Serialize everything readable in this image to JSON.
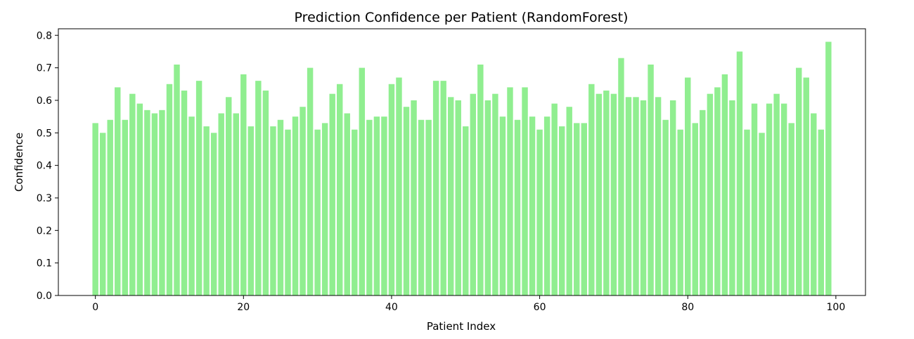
{
  "chart_data": {
    "type": "bar",
    "title": "Prediction Confidence per Patient (RandomForest)",
    "xlabel": "Patient Index",
    "ylabel": "Confidence",
    "bar_color": "#90ee90",
    "xlim": [
      -5,
      104
    ],
    "ylim": [
      0,
      0.82
    ],
    "xticks": [
      0,
      20,
      40,
      60,
      80,
      100
    ],
    "yticks": [
      0.0,
      0.1,
      0.2,
      0.3,
      0.4,
      0.5,
      0.6,
      0.7,
      0.8
    ],
    "grid": false,
    "x": [
      0,
      1,
      2,
      3,
      4,
      5,
      6,
      7,
      8,
      9,
      10,
      11,
      12,
      13,
      14,
      15,
      16,
      17,
      18,
      19,
      20,
      21,
      22,
      23,
      24,
      25,
      26,
      27,
      28,
      29,
      30,
      31,
      32,
      33,
      34,
      35,
      36,
      37,
      38,
      39,
      40,
      41,
      42,
      43,
      44,
      45,
      46,
      47,
      48,
      49,
      50,
      51,
      52,
      53,
      54,
      55,
      56,
      57,
      58,
      59,
      60,
      61,
      62,
      63,
      64,
      65,
      66,
      67,
      68,
      69,
      70,
      71,
      72,
      73,
      74,
      75,
      76,
      77,
      78,
      79,
      80,
      81,
      82,
      83,
      84,
      85,
      86,
      87,
      88,
      89,
      90,
      91,
      92,
      93,
      94,
      95,
      96,
      97,
      98,
      99
    ],
    "values": [
      0.53,
      0.5,
      0.54,
      0.64,
      0.54,
      0.62,
      0.59,
      0.57,
      0.56,
      0.57,
      0.65,
      0.71,
      0.63,
      0.55,
      0.66,
      0.52,
      0.5,
      0.56,
      0.61,
      0.56,
      0.68,
      0.52,
      0.66,
      0.63,
      0.52,
      0.54,
      0.51,
      0.55,
      0.58,
      0.7,
      0.51,
      0.53,
      0.62,
      0.65,
      0.56,
      0.51,
      0.7,
      0.54,
      0.55,
      0.55,
      0.65,
      0.67,
      0.58,
      0.6,
      0.54,
      0.54,
      0.66,
      0.66,
      0.61,
      0.6,
      0.52,
      0.62,
      0.71,
      0.6,
      0.62,
      0.55,
      0.64,
      0.54,
      0.64,
      0.55,
      0.51,
      0.55,
      0.59,
      0.52,
      0.58,
      0.53,
      0.53,
      0.65,
      0.62,
      0.63,
      0.62,
      0.73,
      0.61,
      0.61,
      0.6,
      0.71,
      0.61,
      0.54,
      0.6,
      0.51,
      0.67,
      0.53,
      0.57,
      0.62,
      0.64,
      0.68,
      0.6,
      0.75,
      0.51,
      0.59,
      0.5,
      0.59,
      0.62,
      0.59,
      0.53,
      0.7,
      0.67,
      0.56,
      0.51,
      0.78
    ]
  }
}
